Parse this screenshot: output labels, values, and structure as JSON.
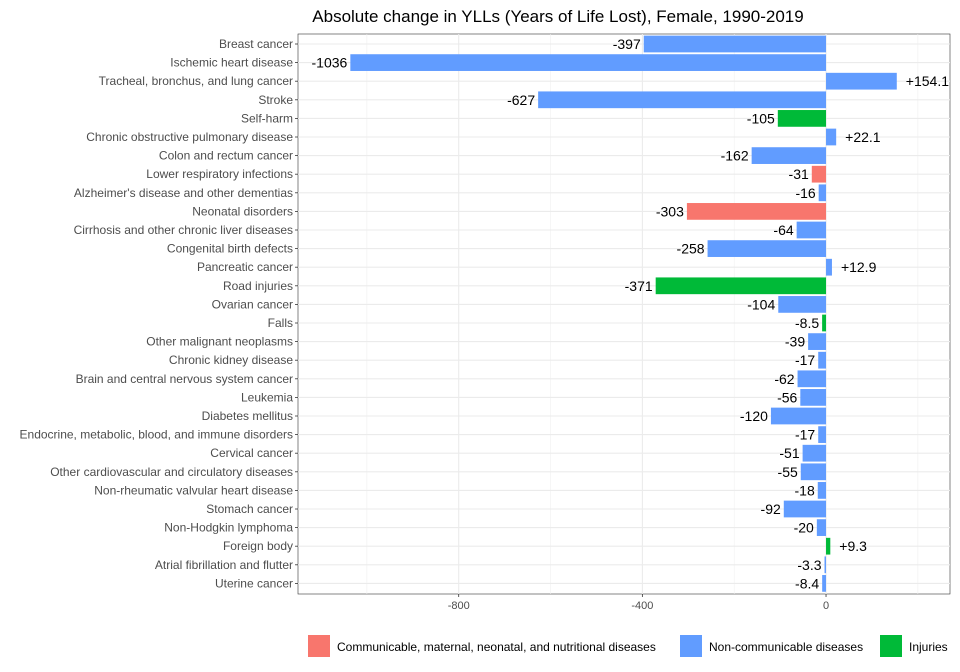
{
  "chart_data": {
    "type": "bar",
    "orientation": "horizontal",
    "title": "Absolute change in YLLs (Years of Life Lost), Female, 1990-2019",
    "xlabel": "",
    "ylabel": "",
    "xlim": [
      -1150,
      270
    ],
    "xticks": [
      -800,
      -400,
      0
    ],
    "grid": true,
    "legend_position": "bottom",
    "groups": [
      {
        "name": "Communicable, maternal, neonatal, and nutritional diseases",
        "color": "#F8766D"
      },
      {
        "name": "Non-communicable diseases",
        "color": "#619CFF"
      },
      {
        "name": "Injuries",
        "color": "#00BA38"
      }
    ],
    "categories": [
      "Breast cancer",
      "Ischemic heart disease",
      "Tracheal, bronchus, and lung cancer",
      "Stroke",
      "Self-harm",
      "Chronic obstructive pulmonary disease",
      "Colon and rectum cancer",
      "Lower respiratory infections",
      "Alzheimer's disease and other dementias",
      "Neonatal disorders",
      "Cirrhosis and other chronic liver diseases",
      "Congenital birth defects",
      "Pancreatic cancer",
      "Road injuries",
      "Ovarian cancer",
      "Falls",
      "Other malignant neoplasms",
      "Chronic kidney disease",
      "Brain and central nervous system cancer",
      "Leukemia",
      "Diabetes mellitus",
      "Endocrine, metabolic, blood, and immune disorders",
      "Cervical cancer",
      "Other cardiovascular and circulatory diseases",
      "Non-rheumatic valvular heart disease",
      "Stomach cancer",
      "Non-Hodgkin lymphoma",
      "Foreign body",
      "Atrial fibrillation and flutter",
      "Uterine cancer"
    ],
    "values": [
      -397,
      -1036,
      154.1,
      -627,
      -105,
      22.1,
      -162,
      -31,
      -16,
      -303,
      -64,
      -258,
      12.9,
      -371,
      -104,
      -8.5,
      -39,
      -17,
      -62,
      -56,
      -120,
      -17,
      -51,
      -55,
      -18,
      -92,
      -20,
      9.3,
      -3.3,
      -8.4
    ],
    "labels": [
      "-397",
      "-1036",
      "+154.1",
      "-627",
      "-105",
      "+22.1",
      "-162",
      "-31",
      "-16",
      "-303",
      "-64",
      "-258",
      "+12.9",
      "-371",
      "-104",
      "-8.5",
      "-39",
      "-17",
      "-62",
      "-56",
      "-120",
      "-17",
      "-51",
      "-55",
      "-18",
      "-92",
      "-20",
      "+9.3",
      "-3.3",
      "-8.4"
    ],
    "group_index": [
      1,
      1,
      1,
      1,
      2,
      1,
      1,
      0,
      1,
      0,
      1,
      1,
      1,
      2,
      1,
      2,
      1,
      1,
      1,
      1,
      1,
      1,
      1,
      1,
      1,
      1,
      1,
      2,
      1,
      1
    ]
  }
}
